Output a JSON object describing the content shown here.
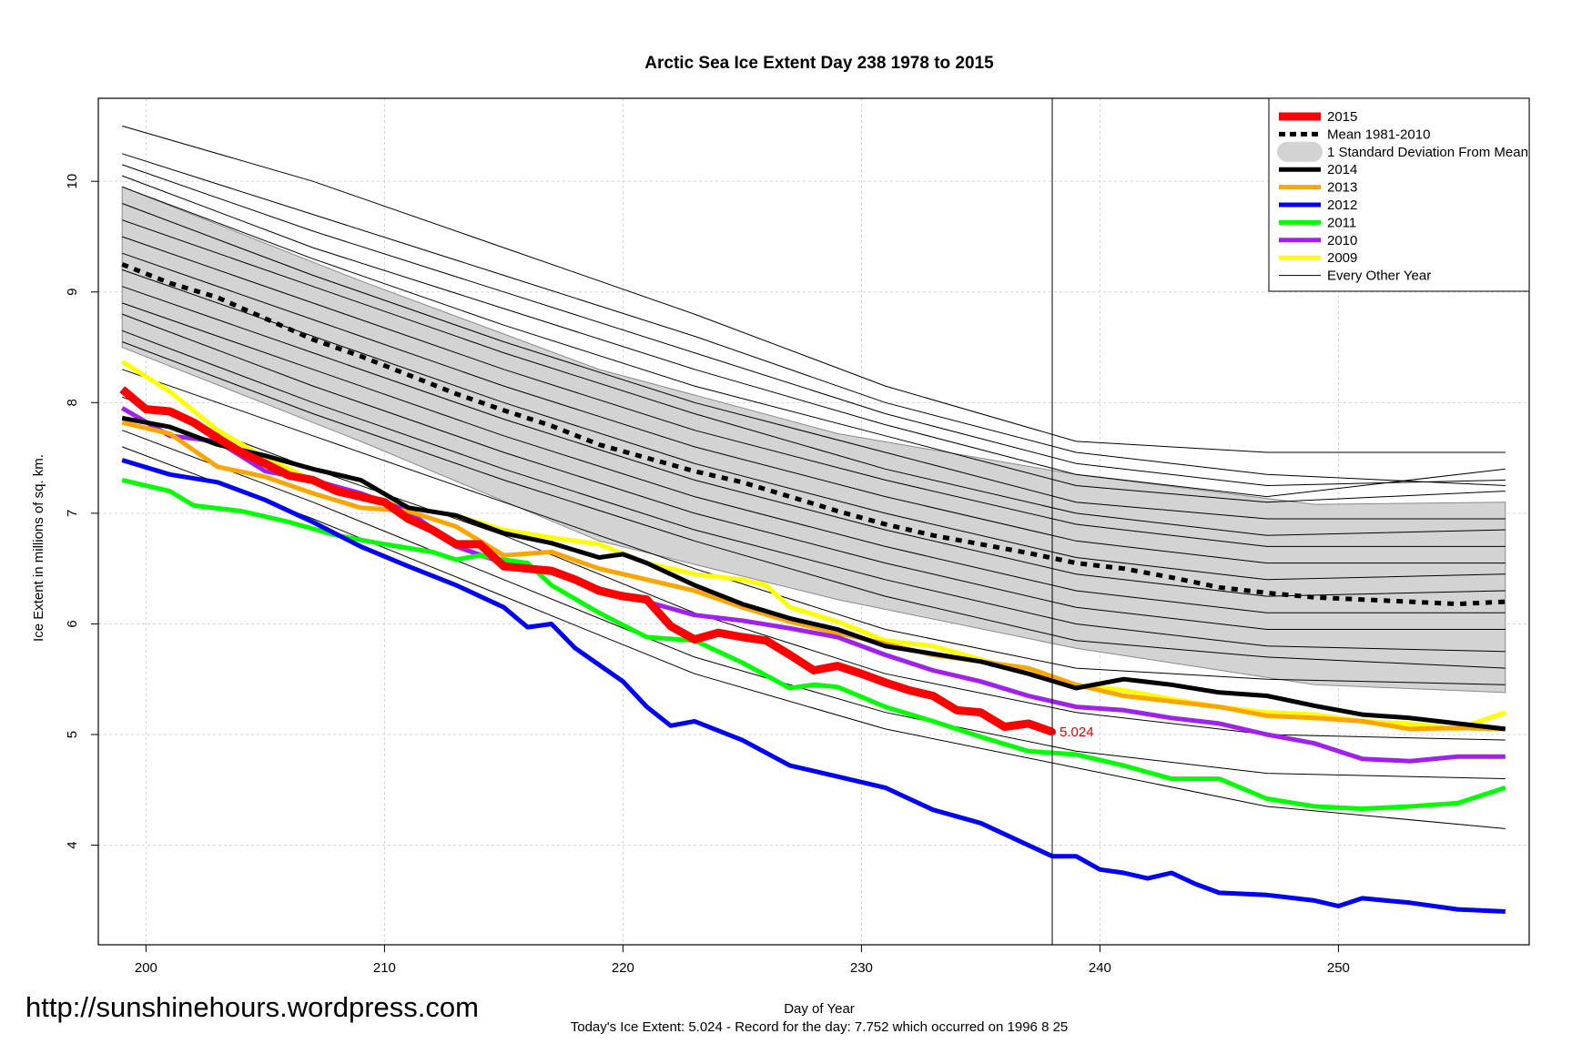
{
  "chart_data": {
    "type": "line",
    "title": "Arctic Sea Ice Extent Day 238 1978 to 2015",
    "xlabel": "Day of Year",
    "ylabel": "Ice Extent in millions of sq. km.",
    "xlim": [
      198,
      258
    ],
    "ylim": [
      3.1,
      10.75
    ],
    "x_ticks": [
      200,
      210,
      220,
      230,
      240,
      250
    ],
    "y_ticks": [
      4,
      5,
      6,
      7,
      8,
      9,
      10
    ],
    "grid": true,
    "legend_position": "top-right",
    "current_day": 238,
    "end_label": "5.024",
    "footer_line1": "Today's Ice Extent: 5.024  - Record for the day: 7.752 which occurred on 1996 8 25",
    "watermark": "http://sunshinehours.wordpress.com",
    "legend": [
      {
        "label": "2015",
        "color": "#ff0000",
        "kind": "thick"
      },
      {
        "label": "Mean 1981-2010",
        "color": "#000000",
        "kind": "dashed"
      },
      {
        "label": "1 Standard Deviation From Mean",
        "color": "#d3d3d3",
        "kind": "band"
      },
      {
        "label": "2014",
        "color": "#000000",
        "kind": "line"
      },
      {
        "label": "2013",
        "color": "#ffa500",
        "kind": "line"
      },
      {
        "label": "2012",
        "color": "#0000ff",
        "kind": "line"
      },
      {
        "label": "2011",
        "color": "#00ff00",
        "kind": "line"
      },
      {
        "label": "2010",
        "color": "#a020f0",
        "kind": "line"
      },
      {
        "label": "2009",
        "color": "#ffff00",
        "kind": "line"
      },
      {
        "label": "Every Other Year",
        "color": "#000000",
        "kind": "thin"
      }
    ],
    "mean": {
      "x": [
        199,
        201,
        203,
        205,
        207,
        209,
        211,
        213,
        215,
        217,
        219,
        221,
        223,
        225,
        227,
        229,
        231,
        233,
        235,
        237,
        239,
        241,
        243,
        245,
        247,
        249,
        251,
        253,
        255,
        257
      ],
      "y": [
        9.25,
        9.08,
        8.95,
        8.76,
        8.57,
        8.42,
        8.25,
        8.08,
        7.93,
        7.79,
        7.62,
        7.5,
        7.38,
        7.28,
        7.15,
        7.02,
        6.9,
        6.8,
        6.72,
        6.64,
        6.55,
        6.5,
        6.42,
        6.33,
        6.28,
        6.24,
        6.22,
        6.2,
        6.18,
        6.2
      ]
    },
    "std_band": {
      "x": [
        199,
        209,
        219,
        229,
        239,
        249,
        257
      ],
      "upper": [
        9.95,
        9.1,
        8.3,
        7.72,
        7.35,
        7.08,
        7.1
      ],
      "lower": [
        8.5,
        7.65,
        6.75,
        6.22,
        5.78,
        5.45,
        5.38
      ]
    },
    "series": [
      {
        "name": "2015",
        "color": "#ff0000",
        "width": 9,
        "x": [
          199,
          200,
          201,
          202,
          203,
          204,
          205,
          206,
          207,
          208,
          209,
          210,
          211,
          212,
          213,
          214,
          215,
          216,
          217,
          218,
          219,
          220,
          221,
          222,
          223,
          224,
          225,
          226,
          227,
          228,
          229,
          230,
          231,
          232,
          233,
          234,
          235,
          236,
          237,
          238
        ],
        "y": [
          8.12,
          7.94,
          7.92,
          7.82,
          7.68,
          7.55,
          7.45,
          7.34,
          7.3,
          7.2,
          7.15,
          7.1,
          6.95,
          6.85,
          6.72,
          6.72,
          6.52,
          6.5,
          6.48,
          6.4,
          6.3,
          6.25,
          6.22,
          5.98,
          5.86,
          5.92,
          5.88,
          5.85,
          5.72,
          5.58,
          5.62,
          5.55,
          5.47,
          5.4,
          5.35,
          5.22,
          5.2,
          5.07,
          5.1,
          5.024
        ]
      },
      {
        "name": "2014",
        "color": "#000000",
        "width": 5,
        "x": [
          199,
          201,
          203,
          205,
          207,
          209,
          211,
          213,
          215,
          217,
          219,
          220,
          221,
          223,
          225,
          227,
          229,
          231,
          233,
          235,
          237,
          239,
          241,
          243,
          245,
          247,
          249,
          251,
          253,
          255,
          257
        ],
        "y": [
          7.86,
          7.78,
          7.62,
          7.52,
          7.4,
          7.3,
          7.05,
          6.98,
          6.82,
          6.73,
          6.6,
          6.63,
          6.55,
          6.35,
          6.18,
          6.05,
          5.95,
          5.8,
          5.73,
          5.66,
          5.55,
          5.42,
          5.5,
          5.45,
          5.38,
          5.35,
          5.26,
          5.18,
          5.15,
          5.1,
          5.05
        ]
      },
      {
        "name": "2013",
        "color": "#ffa500",
        "width": 5,
        "x": [
          199,
          201,
          203,
          205,
          207,
          209,
          211,
          213,
          215,
          217,
          219,
          221,
          223,
          225,
          227,
          229,
          231,
          233,
          235,
          237,
          239,
          241,
          243,
          245,
          247,
          249,
          251,
          253,
          255,
          257
        ],
        "y": [
          7.82,
          7.72,
          7.42,
          7.33,
          7.18,
          7.05,
          7.02,
          6.88,
          6.62,
          6.65,
          6.5,
          6.4,
          6.3,
          6.15,
          6.02,
          5.92,
          5.82,
          5.72,
          5.66,
          5.6,
          5.45,
          5.35,
          5.3,
          5.25,
          5.17,
          5.15,
          5.12,
          5.05,
          5.06,
          5.05
        ]
      },
      {
        "name": "2012",
        "color": "#0000ff",
        "width": 5,
        "x": [
          199,
          201,
          203,
          205,
          207,
          209,
          211,
          213,
          215,
          216,
          217,
          218,
          220,
          221,
          222,
          223,
          225,
          227,
          229,
          231,
          233,
          235,
          237,
          238,
          239,
          240,
          241,
          242,
          243,
          244,
          245,
          247,
          249,
          250,
          251,
          253,
          255,
          257
        ],
        "y": [
          7.48,
          7.35,
          7.28,
          7.12,
          6.92,
          6.7,
          6.52,
          6.35,
          6.15,
          5.97,
          6.0,
          5.78,
          5.48,
          5.25,
          5.08,
          5.12,
          4.95,
          4.72,
          4.62,
          4.52,
          4.32,
          4.2,
          4.0,
          3.9,
          3.9,
          3.78,
          3.75,
          3.7,
          3.75,
          3.65,
          3.57,
          3.55,
          3.5,
          3.45,
          3.52,
          3.48,
          3.42,
          3.4
        ]
      },
      {
        "name": "2011",
        "color": "#00ff00",
        "width": 5,
        "x": [
          199,
          201,
          202,
          204,
          206,
          208,
          210,
          212,
          213,
          214,
          215,
          216,
          217,
          219,
          221,
          223,
          225,
          227,
          228,
          229,
          231,
          233,
          235,
          237,
          239,
          241,
          243,
          245,
          247,
          249,
          251,
          253,
          255,
          257
        ],
        "y": [
          7.3,
          7.2,
          7.07,
          7.02,
          6.92,
          6.8,
          6.72,
          6.65,
          6.58,
          6.62,
          6.58,
          6.55,
          6.35,
          6.1,
          5.88,
          5.85,
          5.65,
          5.42,
          5.45,
          5.43,
          5.25,
          5.12,
          4.98,
          4.85,
          4.82,
          4.72,
          4.6,
          4.6,
          4.42,
          4.35,
          4.33,
          4.35,
          4.38,
          4.52
        ]
      },
      {
        "name": "2010",
        "color": "#a020f0",
        "width": 5,
        "x": [
          199,
          201,
          203,
          205,
          207,
          209,
          211,
          213,
          215,
          217,
          219,
          221,
          223,
          225,
          227,
          229,
          231,
          233,
          235,
          237,
          239,
          241,
          243,
          245,
          247,
          249,
          251,
          253,
          255,
          257
        ],
        "y": [
          7.95,
          7.7,
          7.65,
          7.38,
          7.3,
          7.18,
          7.02,
          6.7,
          6.55,
          6.48,
          6.32,
          6.2,
          6.08,
          6.03,
          5.96,
          5.88,
          5.72,
          5.58,
          5.48,
          5.35,
          5.25,
          5.22,
          5.15,
          5.1,
          5.0,
          4.92,
          4.78,
          4.76,
          4.8,
          4.8
        ]
      },
      {
        "name": "2009",
        "color": "#ffff00",
        "width": 5,
        "x": [
          199,
          201,
          203,
          205,
          207,
          209,
          211,
          213,
          215,
          217,
          219,
          221,
          223,
          225,
          226,
          227,
          229,
          231,
          233,
          235,
          237,
          239,
          241,
          243,
          245,
          247,
          249,
          251,
          253,
          255,
          257
        ],
        "y": [
          8.37,
          8.1,
          7.75,
          7.5,
          7.3,
          7.15,
          7.05,
          6.98,
          6.85,
          6.78,
          6.72,
          6.55,
          6.45,
          6.4,
          6.35,
          6.15,
          6.02,
          5.85,
          5.8,
          5.68,
          5.55,
          5.45,
          5.4,
          5.32,
          5.25,
          5.2,
          5.18,
          5.12,
          5.1,
          5.05,
          5.2
        ]
      }
    ],
    "thin_years": [
      {
        "x": [
          199,
          207,
          215,
          223,
          231,
          239,
          247,
          257
        ],
        "y": [
          10.5,
          10.0,
          9.4,
          8.8,
          8.15,
          7.65,
          7.55,
          7.55
        ]
      },
      {
        "x": [
          199,
          207,
          215,
          223,
          231,
          239,
          247,
          257
        ],
        "y": [
          10.25,
          9.7,
          9.15,
          8.6,
          8.0,
          7.55,
          7.35,
          7.25
        ]
      },
      {
        "x": [
          199,
          207,
          215,
          223,
          231,
          239,
          247,
          257
        ],
        "y": [
          10.15,
          9.55,
          9.0,
          8.45,
          7.9,
          7.45,
          7.25,
          7.3
        ]
      },
      {
        "x": [
          199,
          207,
          215,
          223,
          231,
          239,
          247,
          257
        ],
        "y": [
          10.05,
          9.4,
          8.85,
          8.3,
          7.8,
          7.35,
          7.15,
          7.4
        ]
      },
      {
        "x": [
          199,
          207,
          215,
          223,
          231,
          239,
          247,
          257
        ],
        "y": [
          9.95,
          9.3,
          8.7,
          8.15,
          7.7,
          7.25,
          7.1,
          7.2
        ]
      },
      {
        "x": [
          199,
          207,
          215,
          223,
          231,
          239,
          247,
          257
        ],
        "y": [
          9.8,
          9.15,
          8.55,
          8.0,
          7.55,
          7.1,
          6.95,
          6.95
        ]
      },
      {
        "x": [
          199,
          207,
          215,
          223,
          231,
          239,
          247,
          257
        ],
        "y": [
          9.65,
          9.05,
          8.45,
          7.9,
          7.4,
          7.0,
          6.8,
          6.85
        ]
      },
      {
        "x": [
          199,
          207,
          215,
          223,
          231,
          239,
          247,
          257
        ],
        "y": [
          9.5,
          8.9,
          8.3,
          7.75,
          7.3,
          6.9,
          6.7,
          6.7
        ]
      },
      {
        "x": [
          199,
          207,
          215,
          223,
          231,
          239,
          247,
          257
        ],
        "y": [
          9.35,
          8.75,
          8.15,
          7.6,
          7.15,
          6.75,
          6.55,
          6.55
        ]
      },
      {
        "x": [
          199,
          207,
          215,
          223,
          231,
          239,
          247,
          257
        ],
        "y": [
          9.2,
          8.6,
          8.0,
          7.45,
          7.0,
          6.6,
          6.4,
          6.45
        ]
      },
      {
        "x": [
          199,
          207,
          215,
          223,
          231,
          239,
          247,
          257
        ],
        "y": [
          9.05,
          8.45,
          7.85,
          7.3,
          6.85,
          6.45,
          6.25,
          6.3
        ]
      },
      {
        "x": [
          199,
          207,
          215,
          223,
          231,
          239,
          247,
          257
        ],
        "y": [
          8.9,
          8.3,
          7.7,
          7.15,
          6.7,
          6.3,
          6.1,
          6.1
        ]
      },
      {
        "x": [
          199,
          207,
          215,
          223,
          231,
          239,
          247,
          257
        ],
        "y": [
          8.8,
          8.15,
          7.55,
          7.0,
          6.55,
          6.15,
          5.95,
          5.95
        ]
      },
      {
        "x": [
          199,
          207,
          215,
          223,
          231,
          239,
          247,
          257
        ],
        "y": [
          8.65,
          8.0,
          7.4,
          6.85,
          6.4,
          6.0,
          5.8,
          5.75
        ]
      },
      {
        "x": [
          199,
          207,
          215,
          223,
          231,
          239,
          247,
          257
        ],
        "y": [
          8.55,
          7.9,
          7.3,
          6.75,
          6.25,
          5.85,
          5.7,
          5.6
        ]
      },
      {
        "x": [
          199,
          207,
          215,
          223,
          231,
          239,
          247,
          257
        ],
        "y": [
          8.3,
          7.7,
          7.1,
          6.5,
          5.95,
          5.6,
          5.5,
          5.45
        ]
      },
      {
        "x": [
          199,
          207,
          215,
          223,
          231,
          239,
          247,
          257
        ],
        "y": [
          8.05,
          7.4,
          6.8,
          6.1,
          5.55,
          5.2,
          5.0,
          4.95
        ]
      },
      {
        "x": [
          199,
          207,
          215,
          223,
          231,
          239,
          247,
          257
        ],
        "y": [
          7.75,
          7.1,
          6.4,
          5.7,
          5.2,
          4.85,
          4.65,
          4.6
        ]
      },
      {
        "x": [
          199,
          207,
          215,
          223,
          231,
          239,
          247,
          257
        ],
        "y": [
          7.6,
          6.95,
          6.25,
          5.55,
          5.05,
          4.7,
          4.35,
          4.15
        ]
      }
    ]
  }
}
